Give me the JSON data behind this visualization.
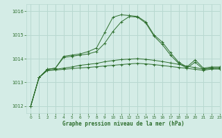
{
  "title": "Graphe pression niveau de la mer (hPa)",
  "background_color": "#d4ece6",
  "grid_color": "#b8d8d0",
  "line_color": "#2d6e2d",
  "xlim": [
    -0.5,
    23
  ],
  "ylim": [
    1011.7,
    1016.3
  ],
  "yticks": [
    1012,
    1013,
    1014,
    1015,
    1016
  ],
  "xticks": [
    0,
    1,
    2,
    3,
    4,
    5,
    6,
    7,
    8,
    9,
    10,
    11,
    12,
    13,
    14,
    15,
    16,
    17,
    18,
    19,
    20,
    21,
    22,
    23
  ],
  "series1": [
    1012.0,
    1013.2,
    1013.55,
    1013.6,
    1014.1,
    1014.15,
    1014.2,
    1014.3,
    1014.45,
    1015.1,
    1015.75,
    1015.85,
    1015.82,
    1015.78,
    1015.55,
    1015.0,
    1014.7,
    1014.25,
    1013.85,
    1013.65,
    1013.95,
    1013.6,
    1013.65,
    1013.65
  ],
  "series2": [
    1012.0,
    1013.2,
    1013.55,
    1013.6,
    1014.05,
    1014.1,
    1014.15,
    1014.2,
    1014.3,
    1014.65,
    1015.15,
    1015.55,
    1015.78,
    1015.75,
    1015.5,
    1014.95,
    1014.6,
    1014.15,
    1013.8,
    1013.6,
    1013.85,
    1013.55,
    1013.6,
    1013.6
  ],
  "series3": [
    1012.0,
    1013.2,
    1013.5,
    1013.55,
    1013.6,
    1013.65,
    1013.72,
    1013.76,
    1013.8,
    1013.87,
    1013.92,
    1013.96,
    1013.98,
    1014.0,
    1013.97,
    1013.93,
    1013.88,
    1013.82,
    1013.76,
    1013.68,
    1013.62,
    1013.56,
    1013.6,
    1013.6
  ],
  "series4": [
    1012.0,
    1013.2,
    1013.5,
    1013.52,
    1013.55,
    1013.58,
    1013.61,
    1013.63,
    1013.66,
    1013.69,
    1013.72,
    1013.75,
    1013.78,
    1013.8,
    1013.78,
    1013.75,
    1013.71,
    1013.67,
    1013.63,
    1013.59,
    1013.55,
    1013.51,
    1013.56,
    1013.56
  ]
}
